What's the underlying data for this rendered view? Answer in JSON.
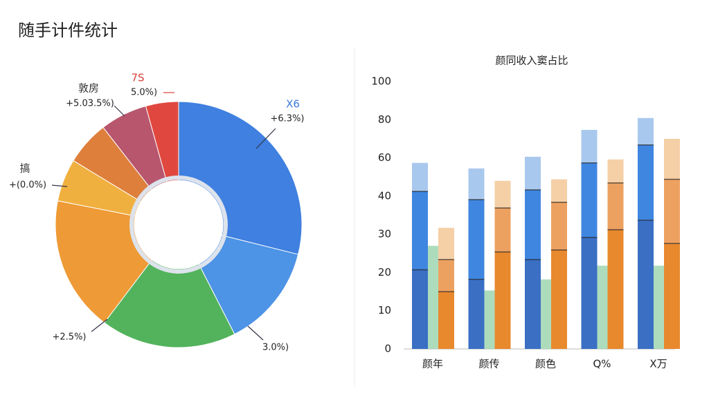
{
  "header": {
    "title": "随手计件统计"
  },
  "chart_data": [
    {
      "type": "pie",
      "values": [
        28.9,
        13.6,
        17.8,
        17.8,
        5.6,
        5.8,
        6.2,
        4.3
      ],
      "colors": [
        "#3f80e0",
        "#4d93e6",
        "#52b35c",
        "#ee9a36",
        "#f0b040",
        "#de7f3c",
        "#b8566e",
        "#e0483f"
      ],
      "hole": true,
      "annotations": [
        {
          "title": "X6",
          "text": "+6.3%)"
        },
        {
          "text": "3.0%)"
        },
        {
          "text": "+2.5%)"
        },
        {
          "title": "搞",
          "text": "+(0.0%)"
        },
        {
          "title": "敦房",
          "text": "+5.03.5%)"
        },
        {
          "title": "7S",
          "text": "5.0%)"
        }
      ]
    },
    {
      "type": "bar",
      "title": "颜同收入窦占比",
      "categories": [
        "颜年",
        "颜传",
        "颜色",
        "Q%",
        "X万"
      ],
      "ylim": [
        0,
        100
      ],
      "yticks": [
        0,
        10,
        20,
        30,
        40,
        60,
        80,
        100
      ],
      "series": [
        {
          "color": "#9fd6b0",
          "values": [
            27.0,
            15.3,
            18.2,
            21.8,
            21.8
          ]
        },
        {
          "color": "#3a6fc4",
          "stack": "a",
          "values": [
            20.7,
            18.2,
            23.4,
            29.2,
            33.7
          ]
        },
        {
          "color": "#3f86e0",
          "stack": "a",
          "values": [
            21.8,
            20.9,
            19.9,
            28.2,
            33.1
          ]
        },
        {
          "color": "#a9c8ee",
          "stack": "a",
          "values": [
            14.9,
            15.4,
            17.3,
            17.3,
            14.1
          ]
        },
        {
          "color": "#e8892e",
          "stack": "b",
          "values": [
            15.0,
            25.4,
            25.9,
            31.2,
            27.6
          ]
        },
        {
          "color": "#eda161",
          "stack": "b",
          "values": [
            8.4,
            11.5,
            12.5,
            15.7,
            21.2
          ]
        },
        {
          "color": "#f5cfa6",
          "stack": "b",
          "values": [
            8.3,
            11.1,
            10.4,
            12.3,
            21.2
          ]
        }
      ]
    }
  ]
}
